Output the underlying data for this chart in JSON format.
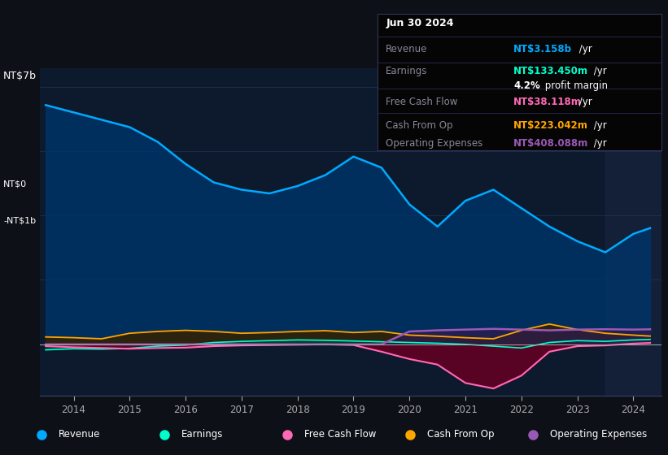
{
  "bg_color": "#0d1117",
  "plot_bg_color": "#0d1a2e",
  "grid_color": "#1e3050",
  "ylabel_top": "NT$7b",
  "ylabel_zero": "NT$0",
  "ylabel_neg": "-NT$1b",
  "revenue_color": "#00aaff",
  "earnings_color": "#00ffcc",
  "fcf_color": "#ff69b4",
  "cashfromop_color": "#ffa500",
  "opex_color": "#9b59b6",
  "revenue_fill": "#003366",
  "earnings_fill": "#004433",
  "fcf_fill": "#660022",
  "cashfromop_fill": "#332200",
  "opex_fill": "#2d1b4e",
  "x_years": [
    2013.5,
    2014,
    2014.5,
    2015,
    2015.5,
    2016,
    2016.5,
    2017,
    2017.5,
    2018,
    2018.5,
    2019,
    2019.5,
    2020,
    2020.5,
    2021,
    2021.5,
    2022,
    2022.5,
    2023,
    2023.5,
    2024,
    2024.3
  ],
  "revenue": [
    6.5,
    6.3,
    6.1,
    5.9,
    5.5,
    4.9,
    4.4,
    4.2,
    4.1,
    4.3,
    4.6,
    5.1,
    4.8,
    3.8,
    3.2,
    3.9,
    4.2,
    3.7,
    3.2,
    2.8,
    2.5,
    3.0,
    3.158
  ],
  "earnings": [
    -0.15,
    -0.12,
    -0.13,
    -0.11,
    -0.05,
    -0.02,
    0.05,
    0.08,
    0.1,
    0.12,
    0.11,
    0.09,
    0.07,
    0.05,
    0.03,
    0.0,
    -0.05,
    -0.1,
    0.05,
    0.1,
    0.08,
    0.12,
    0.133
  ],
  "free_cash_flow": [
    -0.05,
    -0.08,
    -0.1,
    -0.12,
    -0.1,
    -0.09,
    -0.05,
    -0.03,
    -0.02,
    -0.01,
    0.0,
    -0.02,
    -0.2,
    -0.4,
    -0.55,
    -1.05,
    -1.2,
    -0.85,
    -0.2,
    -0.05,
    -0.03,
    0.02,
    0.038
  ],
  "cash_from_op": [
    0.2,
    0.18,
    0.15,
    0.3,
    0.35,
    0.38,
    0.35,
    0.3,
    0.32,
    0.35,
    0.37,
    0.32,
    0.35,
    0.25,
    0.22,
    0.18,
    0.15,
    0.38,
    0.55,
    0.4,
    0.3,
    0.25,
    0.223
  ],
  "operating_expenses": [
    0.0,
    0.0,
    0.0,
    0.0,
    0.0,
    0.0,
    0.0,
    0.0,
    0.0,
    0.0,
    0.0,
    0.0,
    0.0,
    0.35,
    0.38,
    0.4,
    0.42,
    0.4,
    0.38,
    0.4,
    0.41,
    0.4,
    0.408
  ],
  "x_ticks": [
    2014,
    2015,
    2016,
    2017,
    2018,
    2019,
    2020,
    2021,
    2022,
    2023,
    2024
  ],
  "info_box": {
    "date": "Jun 30 2024",
    "revenue_label": "Revenue",
    "revenue_value": "NT$3.158b",
    "revenue_suffix": " /yr",
    "earnings_label": "Earnings",
    "earnings_value": "NT$133.450m",
    "earnings_suffix": " /yr",
    "margin_pct": "4.2%",
    "margin_text": " profit margin",
    "fcf_label": "Free Cash Flow",
    "fcf_value": "NT$38.118m",
    "fcf_suffix": " /yr",
    "cashop_label": "Cash From Op",
    "cashop_value": "NT$223.042m",
    "cashop_suffix": " /yr",
    "opex_label": "Operating Expenses",
    "opex_value": "NT$408.088m",
    "opex_suffix": " /yr"
  },
  "legend": [
    {
      "label": "Revenue",
      "color": "#00aaff"
    },
    {
      "label": "Earnings",
      "color": "#00ffcc"
    },
    {
      "label": "Free Cash Flow",
      "color": "#ff69b4"
    },
    {
      "label": "Cash From Op",
      "color": "#ffa500"
    },
    {
      "label": "Operating Expenses",
      "color": "#9b59b6"
    }
  ],
  "highlight_x_start": 2023.5,
  "highlight_color": "#1a2540",
  "ylim": [
    -1.4,
    7.5
  ],
  "xlim": [
    2013.4,
    2024.5
  ]
}
